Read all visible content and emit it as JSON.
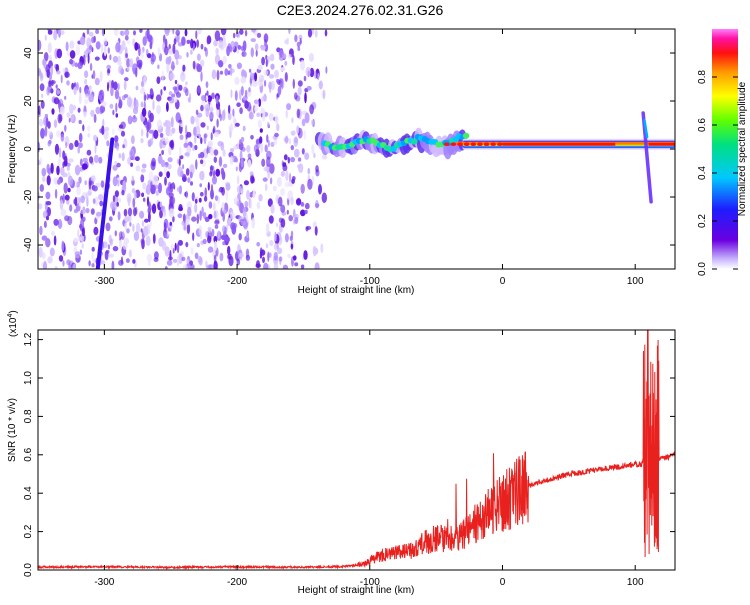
{
  "title": "C2E3.2024.276.02.31.G26",
  "chart_data": [
    {
      "type": "heatmap",
      "xlabel": "Height of straight line (km)",
      "ylabel": "Frequency (Hz)",
      "xlim": [
        -350,
        130
      ],
      "ylim": [
        -50,
        50
      ],
      "xticks": [
        -300,
        -200,
        -100,
        0,
        100
      ],
      "yticks": [
        -40,
        -20,
        0,
        20,
        40
      ],
      "colorbar": {
        "label": "Normalized spectral amplitude",
        "range": [
          0.0,
          1.0
        ],
        "ticks": [
          0.0,
          0.2,
          0.4,
          0.6,
          0.8
        ],
        "tick_labels": [
          "0.0",
          "0.2",
          "0.4",
          "0.6",
          "0.8"
        ],
        "colors": [
          "#ffffff",
          "#6a00e0",
          "#1e1eff",
          "#00c8ff",
          "#00e080",
          "#60ff00",
          "#ffff00",
          "#ff9a00",
          "#ff1010",
          "#ff10a0",
          "#ff80ff"
        ]
      },
      "features": [
        {
          "name": "noise",
          "x_range": [
            -350,
            -130
          ],
          "y_range": [
            -50,
            50
          ],
          "amplitude": 0.15
        },
        {
          "name": "streak",
          "points": [
            [
              -305,
              -50
            ],
            [
              -294,
              4
            ]
          ],
          "amplitude": 0.25
        },
        {
          "name": "signal-band",
          "x_range": [
            -135,
            130
          ],
          "frequency": 2,
          "peak_amplitude": 1.0
        },
        {
          "name": "spike",
          "x": 108,
          "y_range": [
            -22,
            15
          ],
          "amplitude": 0.2
        }
      ]
    },
    {
      "type": "line",
      "xlabel": "Height of straight line (km)",
      "ylabel": "SNR (10 * v/v)",
      "yscale_label": "(x10",
      "yscale_exp": "4",
      "xlim": [
        -350,
        130
      ],
      "ylim": [
        0,
        1.25
      ],
      "xticks": [
        -300,
        -200,
        -100,
        0,
        100
      ],
      "yticks": [
        0.0,
        0.2,
        0.4,
        0.6,
        0.8,
        1.0,
        1.2
      ],
      "ytick_labels": [
        "0.0",
        "0.2",
        "0.4",
        "0.6",
        "0.8",
        "1.0",
        "1.2"
      ],
      "series": [
        {
          "color": "#e8201e",
          "x": [
            -350,
            -300,
            -250,
            -200,
            -150,
            -120,
            -105,
            -100,
            -90,
            -80,
            -70,
            -60,
            -50,
            -40,
            -30,
            -20,
            -10,
            0,
            10,
            20,
            30,
            40,
            50,
            60,
            70,
            80,
            90,
            100,
            105,
            108,
            110,
            112,
            115,
            117,
            120,
            125,
            130
          ],
          "y": [
            0.015,
            0.017,
            0.014,
            0.016,
            0.015,
            0.018,
            0.03,
            0.05,
            0.08,
            0.09,
            0.1,
            0.14,
            0.17,
            0.16,
            0.18,
            0.22,
            0.3,
            0.35,
            0.4,
            0.44,
            0.46,
            0.48,
            0.5,
            0.51,
            0.52,
            0.53,
            0.54,
            0.55,
            0.55,
            0.6,
            0.1,
            0.55,
            0.2,
            0.58,
            0.58,
            0.59,
            0.6
          ]
        }
      ]
    }
  ]
}
